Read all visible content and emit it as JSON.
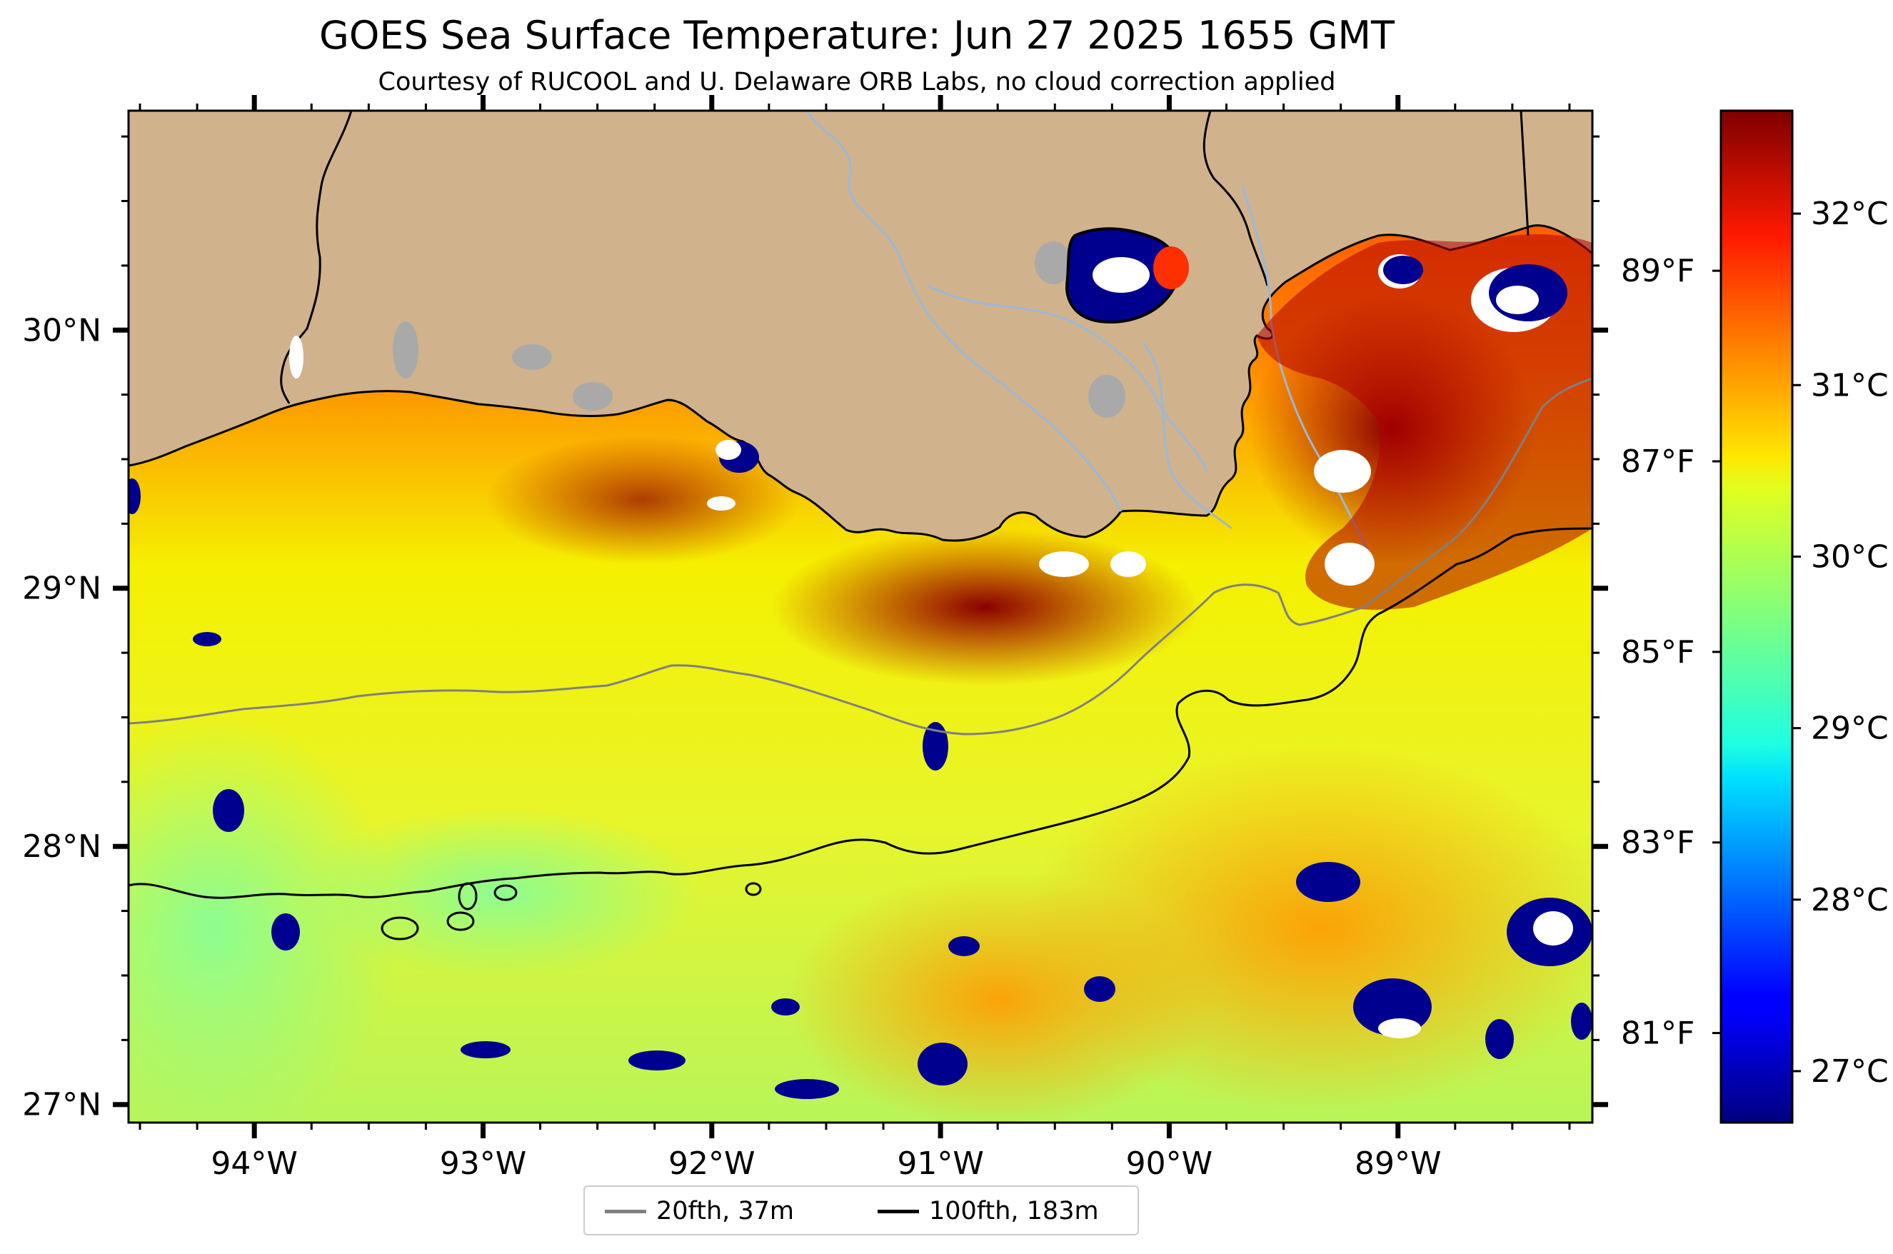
{
  "title": "GOES Sea Surface Temperature: Jun 27 2025 1655 GMT",
  "subtitle": "Courtesy of RUCOOL and U. Delaware ORB Labs, no cloud correction applied",
  "map": {
    "lon_range": [
      -94.55,
      -88.15
    ],
    "lat_range": [
      26.93,
      30.85
    ],
    "lon_ticks": [
      -94,
      -93,
      -92,
      -91,
      -90,
      -89
    ],
    "lon_tick_labels": [
      "94°W",
      "93°W",
      "92°W",
      "91°W",
      "90°W",
      "89°W"
    ],
    "lat_ticks": [
      27,
      28,
      29,
      30
    ],
    "lat_tick_labels": [
      "27°N",
      "28°N",
      "29°N",
      "30°N"
    ],
    "land_color": "#d0b38c",
    "lake_color": "#a9a9a9",
    "river_color": "#9bb8d8"
  },
  "legend": {
    "items": [
      {
        "label": "20fth, 37m",
        "color": "#808080"
      },
      {
        "label": "100fth, 183m",
        "color": "#000000"
      }
    ]
  },
  "colorbar": {
    "colormap": "jet",
    "celsius_range": [
      26.7,
      32.6
    ],
    "celsius_ticks": [
      27,
      28,
      29,
      30,
      31,
      32
    ],
    "celsius_labels": [
      "27°C",
      "28°C",
      "29°C",
      "30°C",
      "31°C",
      "32°C"
    ],
    "fahrenheit_ticks": [
      81,
      83,
      85,
      87,
      89
    ],
    "fahrenheit_labels": [
      "81°F",
      "83°F",
      "85°F",
      "87°F",
      "89°F"
    ]
  }
}
